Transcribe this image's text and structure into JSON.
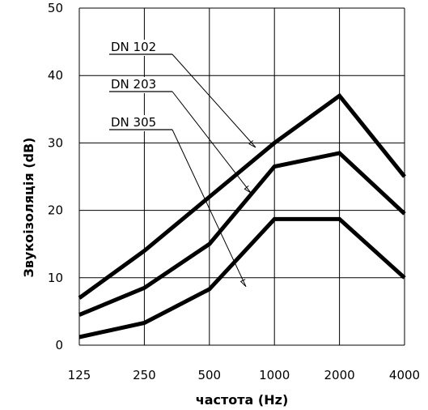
{
  "chart_data": {
    "type": "line",
    "categories": [
      "125",
      "250",
      "500",
      "1000",
      "2000",
      "4000"
    ],
    "xlabel": "частота (Hz)",
    "ylabel": "Звукоізоляція (dB)",
    "ylim": [
      0,
      50
    ],
    "yticks": [
      "0",
      "10",
      "20",
      "30",
      "40",
      "50"
    ],
    "grid": true,
    "line_color": "#000000",
    "series": [
      {
        "name": "DN 102",
        "values": [
          7,
          14,
          22,
          30,
          37,
          25
        ]
      },
      {
        "name": "DN 203",
        "values": [
          4.5,
          8.5,
          15,
          26.5,
          28.5,
          19.5
        ]
      },
      {
        "name": "DN 305",
        "values": [
          1.2,
          3.3,
          8.3,
          18.7,
          18.7,
          10
        ]
      }
    ]
  }
}
